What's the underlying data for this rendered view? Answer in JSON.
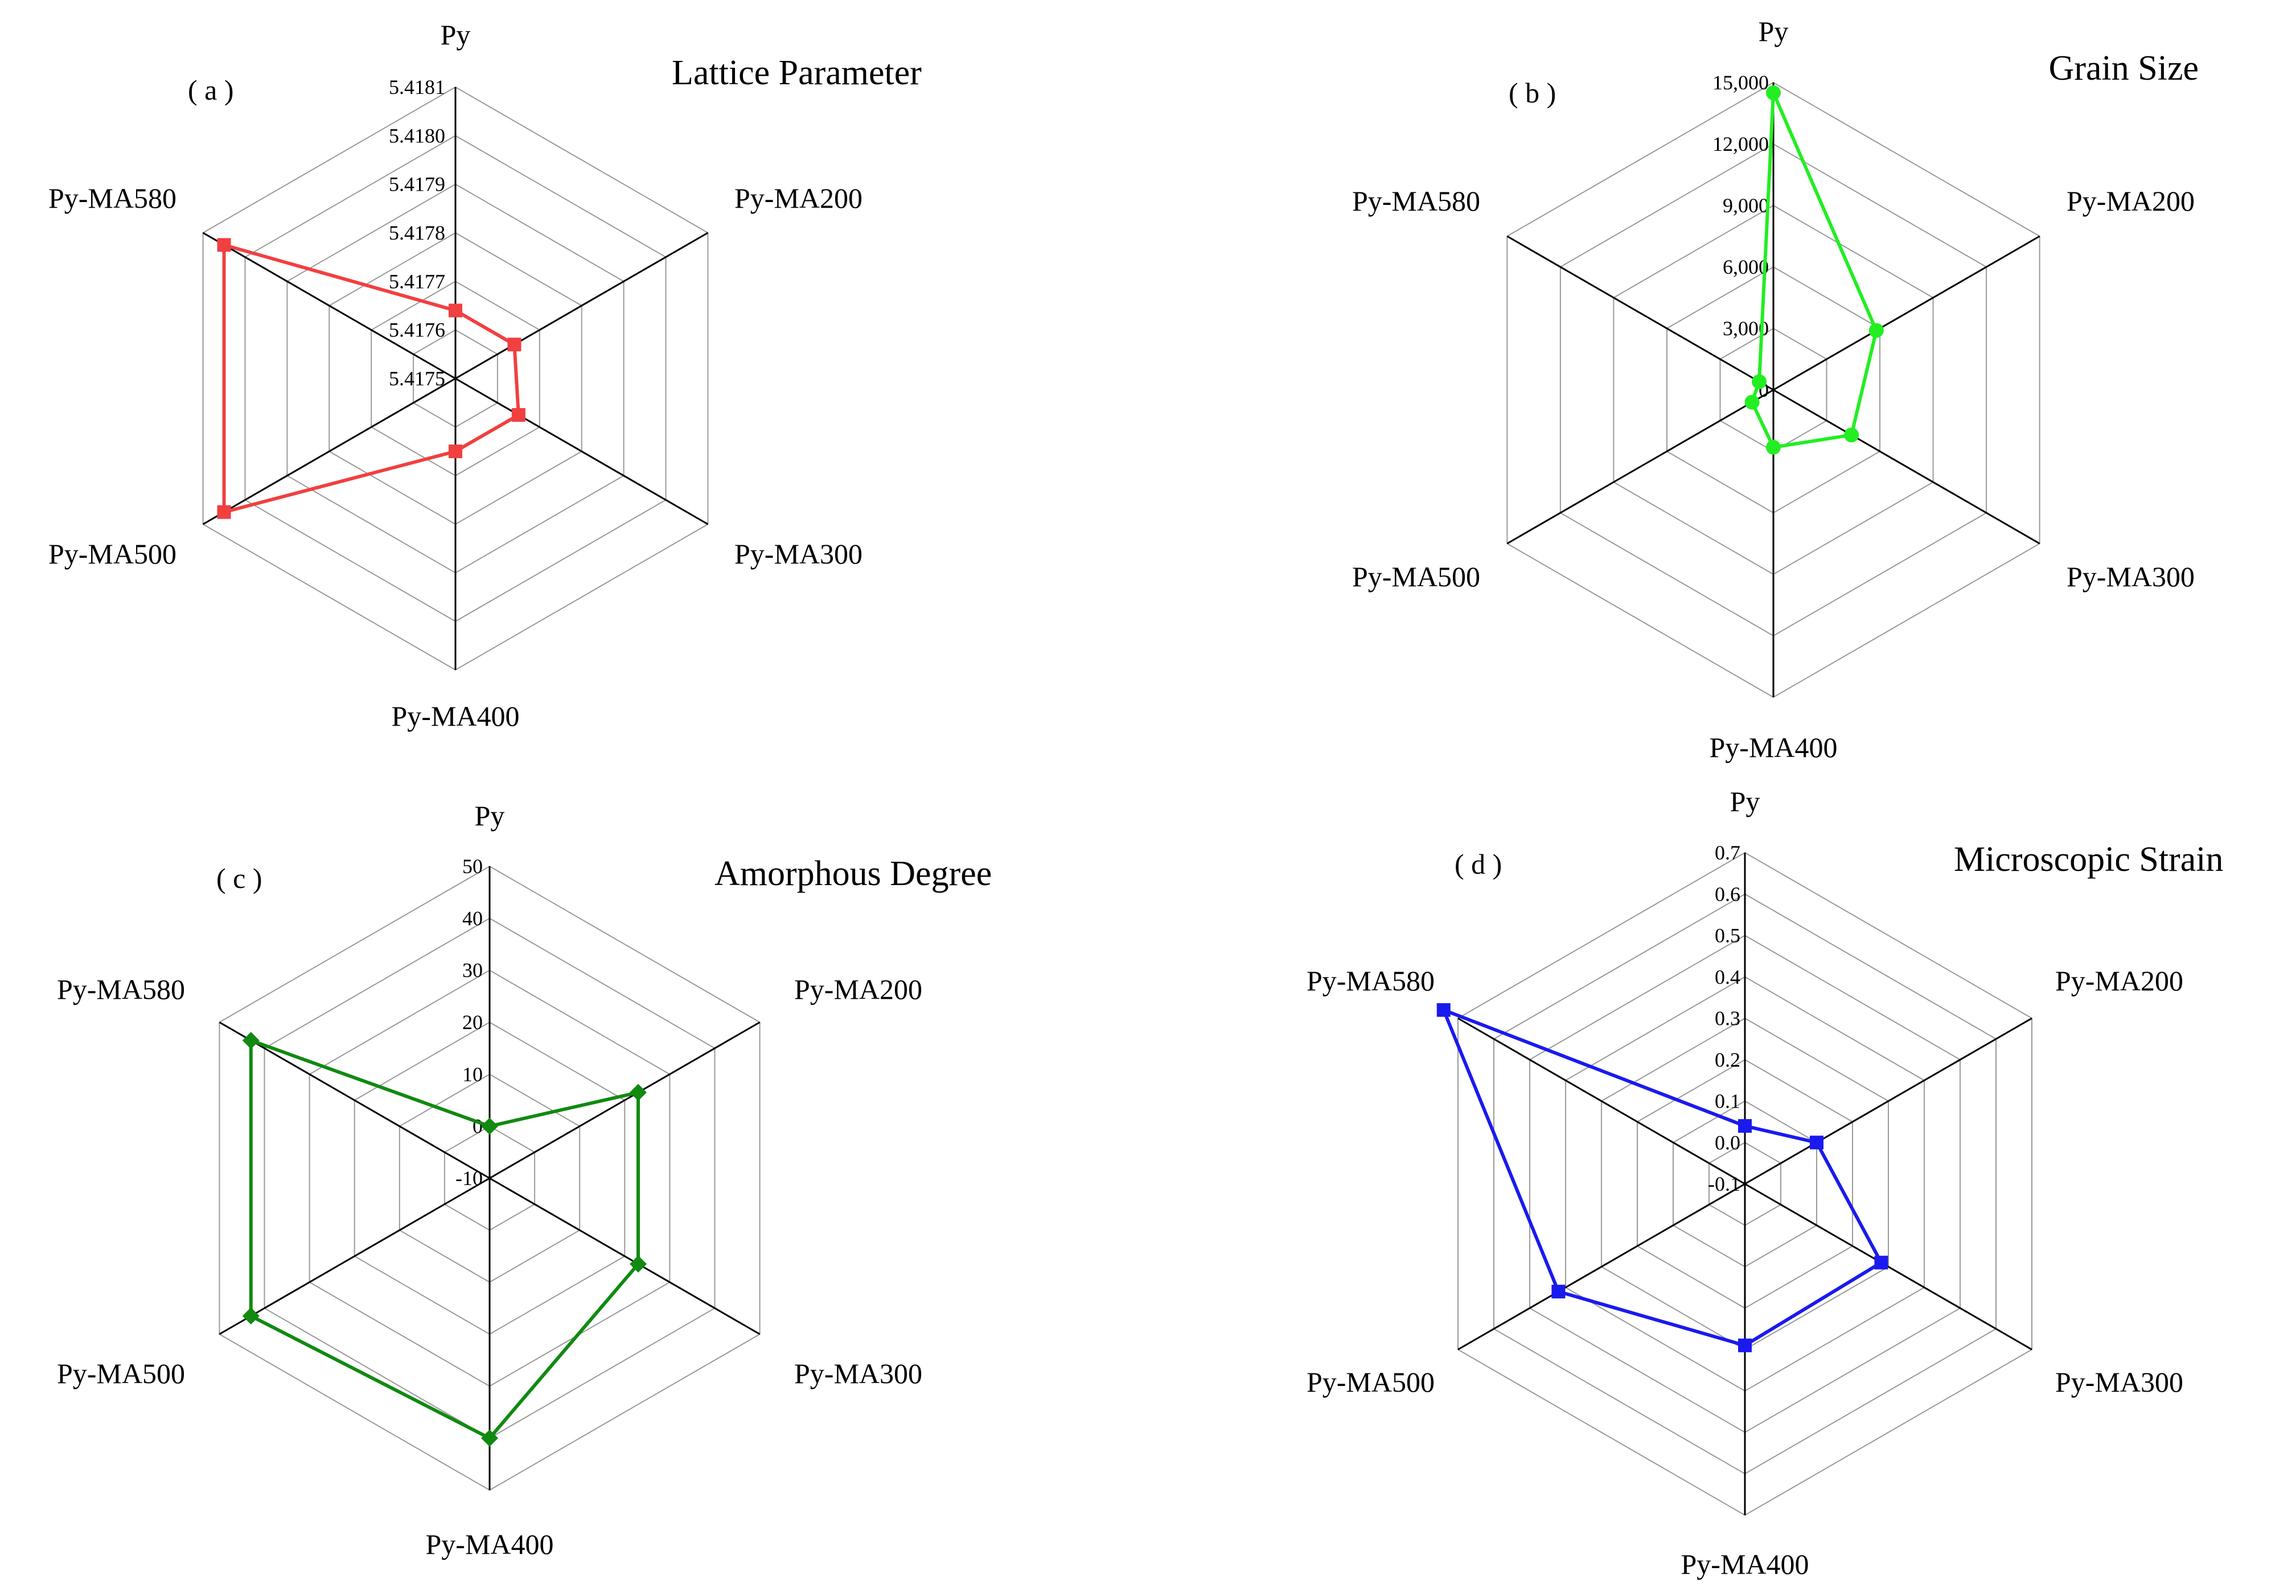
{
  "chart_data": [
    {
      "type": "radar",
      "panel_label": "( a )",
      "title": "Lattice Parameter",
      "axes": [
        "Py",
        "Py-MA200",
        "Py-MA300",
        "Py-MA400",
        "Py-MA500",
        "Py-MA580"
      ],
      "ticks": [
        "5.4175",
        "5.4176",
        "5.4177",
        "5.4178",
        "5.4179",
        "5.4180",
        "5.4181"
      ],
      "range": [
        5.4175,
        5.4181
      ],
      "values": [
        5.41764,
        5.41764,
        5.41765,
        5.41765,
        5.41805,
        5.41805
      ],
      "color": "#f04040",
      "marker": "square"
    },
    {
      "type": "radar",
      "panel_label": "( b )",
      "title": "Grain Size",
      "axes": [
        "Py",
        "Py-MA200",
        "Py-MA300",
        "Py-MA400",
        "Py-MA500",
        "Py-MA580"
      ],
      "ticks": [
        "0",
        "3,000",
        "6,000",
        "9,000",
        "12,000",
        "15,000"
      ],
      "range": [
        0,
        15000
      ],
      "values": [
        14500,
        5800,
        4400,
        2800,
        1200,
        800
      ],
      "color": "#22ee22",
      "marker": "circle"
    },
    {
      "type": "radar",
      "panel_label": "( c )",
      "title": "Amorphous Degree",
      "axes": [
        "Py",
        "Py-MA200",
        "Py-MA300",
        "Py-MA400",
        "Py-MA500",
        "Py-MA580"
      ],
      "ticks": [
        "-10",
        "0",
        "10",
        "20",
        "30",
        "40",
        "50"
      ],
      "range": [
        -10,
        50
      ],
      "values": [
        0,
        23,
        23,
        40,
        43,
        43
      ],
      "color": "#108a10",
      "marker": "diamond"
    },
    {
      "type": "radar",
      "panel_label": "( d )",
      "title": "Microscopic Strain",
      "axes": [
        "Py",
        "Py-MA200",
        "Py-MA300",
        "Py-MA400",
        "Py-MA500",
        "Py-MA580"
      ],
      "ticks": [
        "-0.1",
        "0.0",
        "0.1",
        "0.2",
        "0.3",
        "0.4",
        "0.5",
        "0.6",
        "0.7"
      ],
      "range": [
        -0.1,
        0.7
      ],
      "values": [
        0.04,
        0.1,
        0.28,
        0.29,
        0.42,
        0.74
      ],
      "color": "#1a1aee",
      "marker": "square"
    }
  ]
}
